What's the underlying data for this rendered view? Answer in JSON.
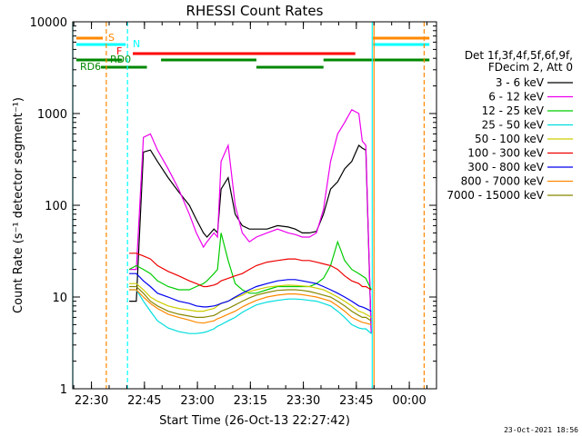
{
  "chart_data": {
    "type": "line",
    "title": "RHESSI Count Rates",
    "xlabel": "Start Time (26-Oct-13 22:27:42)",
    "ylabel": "Count Rate (s⁻¹ detector segment⁻¹)",
    "yscale": "log",
    "ylim": [
      1,
      10000
    ],
    "xlim_minutes": [
      -3,
      100
    ],
    "x_tick_labels": [
      "22:30",
      "22:45",
      "23:00",
      "23:15",
      "23:30",
      "23:45",
      "00:00"
    ],
    "x_tick_minutes": [
      2.3,
      17.3,
      32.3,
      47.3,
      62.3,
      77.3,
      92.3
    ],
    "y_tick_labels": [
      "1",
      "10",
      "100",
      "1000",
      "10000"
    ],
    "y_tick_values": [
      1,
      10,
      100,
      1000,
      10000
    ],
    "legend_title": [
      "Det 1f,3f,4f,5f,6f,9f,",
      "FDecim 2, Att 0"
    ],
    "legend_placement": "right",
    "timestamp": "23-Oct-2021 18:56",
    "data_gap_minutes": [
      [
        -3,
        13
      ],
      [
        81.5,
        100
      ]
    ],
    "series": [
      {
        "name": "3 - 6 keV",
        "color": "#000000",
        "x": [
          13,
          15,
          17,
          19,
          21,
          24,
          27,
          30,
          32,
          34,
          35,
          37,
          38,
          39,
          41,
          43,
          45,
          47,
          49,
          52,
          55,
          58,
          60,
          62,
          64,
          66,
          68,
          70,
          72,
          74,
          76,
          78,
          79,
          80,
          81.5
        ],
        "y": [
          9,
          9,
          380,
          400,
          300,
          200,
          140,
          100,
          70,
          50,
          45,
          55,
          50,
          150,
          200,
          80,
          60,
          55,
          55,
          55,
          60,
          58,
          55,
          50,
          50,
          52,
          80,
          150,
          180,
          250,
          300,
          450,
          420,
          400,
          4
        ]
      },
      {
        "name": "6 - 12 keV",
        "color": "#ee00ee",
        "x": [
          13,
          15,
          17,
          19,
          21,
          24,
          27,
          30,
          32,
          34,
          35,
          37,
          38,
          39,
          41,
          43,
          45,
          47,
          49,
          52,
          55,
          58,
          60,
          62,
          64,
          66,
          68,
          70,
          72,
          74,
          76,
          78,
          79,
          80,
          81.5
        ],
        "y": [
          20,
          20,
          550,
          600,
          400,
          250,
          150,
          80,
          50,
          35,
          40,
          50,
          45,
          300,
          450,
          100,
          50,
          40,
          45,
          50,
          55,
          50,
          48,
          45,
          45,
          50,
          90,
          300,
          600,
          800,
          1100,
          1000,
          500,
          450,
          4
        ]
      },
      {
        "name": "12 - 25 keV",
        "color": "#00cc00",
        "x": [
          13,
          15,
          17,
          19,
          21,
          24,
          27,
          30,
          32,
          34,
          35,
          37,
          38,
          39,
          41,
          43,
          45,
          47,
          49,
          52,
          55,
          58,
          60,
          62,
          64,
          66,
          68,
          70,
          72,
          74,
          76,
          78,
          79,
          80,
          81.5
        ],
        "y": [
          20,
          22,
          20,
          18,
          15,
          13,
          12,
          12,
          13,
          14,
          15,
          18,
          20,
          50,
          25,
          14,
          12,
          11,
          11,
          12,
          13,
          13,
          13,
          13,
          13,
          14,
          16,
          22,
          40,
          25,
          20,
          18,
          17,
          16,
          12
        ]
      },
      {
        "name": "25 - 50 keV",
        "color": "#00dddd",
        "x": [
          13,
          15,
          17,
          19,
          21,
          24,
          27,
          30,
          32,
          34,
          35,
          37,
          38,
          39,
          41,
          43,
          45,
          47,
          49,
          52,
          55,
          58,
          60,
          62,
          64,
          66,
          68,
          70,
          72,
          74,
          76,
          78,
          79,
          80,
          81.5
        ],
        "y": [
          12,
          12,
          9,
          7,
          5.5,
          4.6,
          4.2,
          4,
          4,
          4.1,
          4.2,
          4.5,
          4.8,
          5,
          5.5,
          6,
          6.8,
          7.5,
          8.2,
          8.8,
          9.2,
          9.5,
          9.5,
          9.4,
          9.2,
          9,
          8.5,
          8,
          7,
          6,
          5,
          4.6,
          4.5,
          4.5,
          4
        ]
      },
      {
        "name": "50 - 100 keV",
        "color": "#cccc00",
        "x": [
          13,
          15,
          17,
          19,
          21,
          24,
          27,
          30,
          32,
          34,
          35,
          37,
          38,
          39,
          41,
          43,
          45,
          47,
          49,
          52,
          55,
          58,
          60,
          62,
          64,
          66,
          68,
          70,
          72,
          74,
          76,
          78,
          79,
          80,
          81.5
        ],
        "y": [
          14,
          14,
          12,
          10,
          9,
          8,
          7.5,
          7.2,
          7,
          7,
          7.2,
          7.5,
          8,
          8.5,
          9,
          9.8,
          10.5,
          11.5,
          12,
          12.8,
          13.2,
          13.5,
          13.4,
          13.2,
          13,
          12.5,
          12,
          11,
          10,
          9,
          8,
          7,
          6.8,
          6.5,
          6
        ]
      },
      {
        "name": "100 - 300 keV",
        "color": "#ee0000",
        "x": [
          13,
          15,
          17,
          19,
          21,
          24,
          27,
          30,
          32,
          34,
          35,
          37,
          38,
          39,
          41,
          43,
          45,
          47,
          49,
          52,
          55,
          58,
          60,
          62,
          64,
          66,
          68,
          70,
          72,
          74,
          76,
          78,
          79,
          80,
          81.5
        ],
        "y": [
          30,
          30,
          28,
          26,
          22,
          19,
          17,
          15,
          14,
          13,
          13,
          13.5,
          14,
          15,
          16,
          17,
          18,
          20,
          22,
          24,
          25,
          26,
          26,
          25,
          25,
          24,
          23,
          22,
          20,
          17,
          15,
          14,
          13,
          13,
          12
        ]
      },
      {
        "name": "300 - 800 keV",
        "color": "#0000ee",
        "x": [
          13,
          15,
          17,
          19,
          21,
          24,
          27,
          30,
          32,
          34,
          35,
          37,
          38,
          39,
          41,
          43,
          45,
          47,
          49,
          52,
          55,
          58,
          60,
          62,
          64,
          66,
          68,
          70,
          72,
          74,
          76,
          78,
          79,
          80,
          81.5
        ],
        "y": [
          18,
          18,
          15,
          13,
          11,
          10,
          9,
          8.5,
          8,
          7.8,
          7.8,
          8,
          8.2,
          8.5,
          9,
          10,
          11,
          12,
          13,
          14,
          15,
          15.5,
          15.5,
          15,
          14.5,
          14,
          13,
          12,
          11,
          10,
          9,
          8,
          7.8,
          7.5,
          7
        ]
      },
      {
        "name": "800 - 7000 keV",
        "color": "#ff8800",
        "x": [
          13,
          15,
          17,
          19,
          21,
          24,
          27,
          30,
          32,
          34,
          35,
          37,
          38,
          39,
          41,
          43,
          45,
          47,
          49,
          52,
          55,
          58,
          60,
          62,
          64,
          66,
          68,
          70,
          72,
          74,
          76,
          78,
          79,
          80,
          81.5
        ],
        "y": [
          12,
          12,
          10,
          8.5,
          7.5,
          6.5,
          6,
          5.6,
          5.3,
          5.2,
          5.3,
          5.5,
          5.8,
          6,
          6.5,
          7,
          7.8,
          8.5,
          9.2,
          10,
          10.5,
          10.8,
          10.8,
          10.6,
          10.3,
          10,
          9.5,
          9,
          8,
          7,
          6,
          5.5,
          5.3,
          5.2,
          5
        ]
      },
      {
        "name": "7000 - 15000 keV",
        "color": "#888800",
        "x": [
          13,
          15,
          17,
          19,
          21,
          24,
          27,
          30,
          32,
          34,
          35,
          37,
          38,
          39,
          41,
          43,
          45,
          47,
          49,
          52,
          55,
          58,
          60,
          62,
          64,
          66,
          68,
          70,
          72,
          74,
          76,
          78,
          79,
          80,
          81.5
        ],
        "y": [
          13,
          13,
          11,
          9,
          8,
          7,
          6.5,
          6.2,
          6,
          6,
          6.1,
          6.3,
          6.6,
          7,
          7.5,
          8.2,
          9,
          9.8,
          10.5,
          11.2,
          11.8,
          12,
          12,
          11.8,
          11.5,
          11,
          10.5,
          10,
          9,
          8,
          7,
          6.3,
          6,
          6,
          5.5
        ]
      }
    ],
    "flag_bars": [
      {
        "label": "S",
        "color": "#ff8800",
        "segments": [
          [
            -2,
            5.5
          ],
          [
            82,
            98
          ]
        ]
      },
      {
        "label": "N",
        "color": "#00ffff",
        "segments": [
          [
            -2,
            12
          ],
          [
            82,
            98
          ]
        ]
      },
      {
        "label": "F",
        "color": "#ff0000",
        "segments": [
          [
            14,
            77
          ]
        ]
      },
      {
        "label": "RD0",
        "color": "#008800",
        "segments": [
          [
            -2,
            11
          ],
          [
            22,
            49
          ],
          [
            68,
            98
          ]
        ]
      },
      {
        "label": "RD6",
        "color": "#008800",
        "segments": [
          [
            5,
            18
          ],
          [
            49,
            68
          ]
        ]
      }
    ],
    "vertical_lines": [
      {
        "minute": -3,
        "color": "#00ffff",
        "style": "solid"
      },
      {
        "minute": 6.5,
        "color": "#ff8800",
        "style": "dashed"
      },
      {
        "minute": 12.5,
        "color": "#00ffff",
        "style": "dashed"
      },
      {
        "minute": 81.8,
        "color": "#00ffff",
        "style": "solid"
      },
      {
        "minute": 82.3,
        "color": "#ff8800",
        "style": "solid"
      },
      {
        "minute": 96.5,
        "color": "#ff8800",
        "style": "dashed"
      }
    ]
  }
}
